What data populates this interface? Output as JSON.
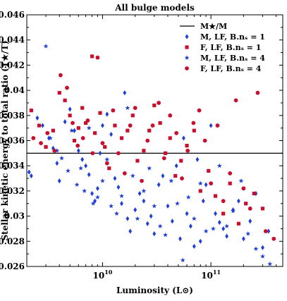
{
  "chart_data": {
    "type": "scatter",
    "title": "All bulge models",
    "xlabel": "Luminosity (L⊙)",
    "ylabel": "Stellar kinetic energy to total ratio (T★/T)",
    "xscale": "log",
    "xlim": [
      2000000000.0,
      460000000000.0
    ],
    "ylim": [
      0.026,
      0.046
    ],
    "yticks": [
      0.026,
      0.028,
      0.03,
      0.032,
      0.034,
      0.036,
      0.038,
      0.04,
      0.042,
      0.044,
      0.046
    ],
    "ytick_labels": [
      "0.026",
      "0.028",
      "0.03",
      "0.032",
      "0.034",
      "0.036",
      "0.038",
      "0.04",
      "0.042",
      "0.044",
      "0.046"
    ],
    "xticks": [
      10000000000.0,
      100000000000.0
    ],
    "xtick_labels": [
      {
        "base": "10",
        "exp": "10"
      },
      {
        "base": "10",
        "exp": "11"
      }
    ],
    "legend_position": "top-right",
    "reference_line": {
      "name": "M★/M",
      "y": 0.035,
      "color": "#000000"
    },
    "series": [
      {
        "name": "M, LF, B.nₛ = 1",
        "marker": "diamond",
        "color": "#1f3fd6",
        "points": [
          [
            2100000000.0,
            0.0335
          ],
          [
            2200000000.0,
            0.0332
          ],
          [
            2500000000.0,
            0.0378
          ],
          [
            2800000000.0,
            0.0372
          ],
          [
            3200000000.0,
            0.0362
          ],
          [
            3500000000.0,
            0.0354
          ],
          [
            3800000000.0,
            0.0342
          ],
          [
            4000000000.0,
            0.0328
          ],
          [
            4500000000.0,
            0.0375
          ],
          [
            5000000000.0,
            0.0385
          ],
          [
            5500000000.0,
            0.0368
          ],
          [
            6000000000.0,
            0.0352
          ],
          [
            6500000000.0,
            0.0345
          ],
          [
            7000000000.0,
            0.034
          ],
          [
            7500000000.0,
            0.0333
          ],
          [
            8000000000.0,
            0.0318
          ],
          [
            8500000000.0,
            0.0312
          ],
          [
            9000000000.0,
            0.0322
          ],
          [
            9500000000.0,
            0.035
          ],
          [
            10000000000.0,
            0.0372
          ],
          [
            11000000000.0,
            0.0381
          ],
          [
            12000000000.0,
            0.0365
          ],
          [
            13000000000.0,
            0.033
          ],
          [
            14000000000.0,
            0.0323
          ],
          [
            15000000000.0,
            0.031
          ],
          [
            16000000000.0,
            0.0398
          ],
          [
            17000000000.0,
            0.0298
          ],
          [
            18000000000.0,
            0.0288
          ],
          [
            20000000000.0,
            0.0305
          ],
          [
            22000000000.0,
            0.0318
          ],
          [
            24000000000.0,
            0.0312
          ],
          [
            26000000000.0,
            0.0294
          ],
          [
            28000000000.0,
            0.03
          ],
          [
            30000000000.0,
            0.0286
          ],
          [
            33000000000.0,
            0.0325
          ],
          [
            36000000000.0,
            0.0332
          ],
          [
            40000000000.0,
            0.0308
          ],
          [
            44000000000.0,
            0.0296
          ],
          [
            48000000000.0,
            0.034
          ],
          [
            52000000000.0,
            0.0282
          ],
          [
            56000000000.0,
            0.0362
          ],
          [
            60000000000.0,
            0.0302
          ],
          [
            65000000000.0,
            0.0292
          ],
          [
            70000000000.0,
            0.0276
          ],
          [
            75000000000.0,
            0.0345
          ],
          [
            80000000000.0,
            0.028
          ],
          [
            85000000000.0,
            0.0312
          ],
          [
            90000000000.0,
            0.0325
          ],
          [
            100000000000.0,
            0.0372
          ],
          [
            110000000000.0,
            0.0302
          ],
          [
            120000000000.0,
            0.0295
          ],
          [
            130000000000.0,
            0.029
          ],
          [
            140000000000.0,
            0.0284
          ],
          [
            160000000000.0,
            0.0305
          ],
          [
            180000000000.0,
            0.0312
          ],
          [
            200000000000.0,
            0.0282
          ],
          [
            230000000000.0,
            0.0296
          ],
          [
            260000000000.0,
            0.0318
          ],
          [
            300000000000.0,
            0.0275
          ],
          [
            340000000000.0,
            0.0288
          ]
        ]
      },
      {
        "name": "F, LF, B.nₛ = 1",
        "marker": "square",
        "color": "#c8102e",
        "points": [
          [
            2200000000.0,
            0.0384
          ],
          [
            2600000000.0,
            0.0372
          ],
          [
            3000000000.0,
            0.0355
          ],
          [
            3500000000.0,
            0.0368
          ],
          [
            4000000000.0,
            0.0398
          ],
          [
            4500000000.0,
            0.0392
          ],
          [
            5000000000.0,
            0.038
          ],
          [
            5500000000.0,
            0.036
          ],
          [
            6000000000.0,
            0.037
          ],
          [
            6500000000.0,
            0.0386
          ],
          [
            7000000000.0,
            0.0374
          ],
          [
            8000000000.0,
            0.0427
          ],
          [
            8500000000.0,
            0.0366
          ],
          [
            9500000000.0,
            0.0382
          ],
          [
            10500000000.0,
            0.0355
          ],
          [
            11500000000.0,
            0.0338
          ],
          [
            13000000000.0,
            0.0372
          ],
          [
            15000000000.0,
            0.0362
          ],
          [
            17000000000.0,
            0.0368
          ],
          [
            19000000000.0,
            0.038
          ],
          [
            21000000000.0,
            0.0344
          ],
          [
            24000000000.0,
            0.0352
          ],
          [
            27000000000.0,
            0.0368
          ],
          [
            30000000000.0,
            0.0388
          ],
          [
            34000000000.0,
            0.0374
          ],
          [
            38000000000.0,
            0.035
          ],
          [
            42000000000.0,
            0.0362
          ],
          [
            47000000000.0,
            0.0332
          ],
          [
            53000000000.0,
            0.0344
          ],
          [
            60000000000.0,
            0.0356
          ],
          [
            70000000000.0,
            0.0368
          ],
          [
            80000000000.0,
            0.032
          ],
          [
            95000000000.0,
            0.0336
          ],
          [
            110000000000.0,
            0.0316
          ],
          [
            130000000000.0,
            0.0302
          ],
          [
            150000000000.0,
            0.0326
          ],
          [
            180000000000.0,
            0.0294
          ],
          [
            210000000000.0,
            0.031
          ],
          [
            250000000000.0,
            0.0318
          ],
          [
            300000000000.0,
            0.0306
          ]
        ]
      },
      {
        "name": "M, LF, B.nₛ = 4",
        "marker": "star",
        "color": "#1f3fd6",
        "points": [
          [
            3000000000.0,
            0.0435
          ],
          [
            3300000000.0,
            0.0362
          ],
          [
            3800000000.0,
            0.0352
          ],
          [
            4200000000.0,
            0.0346
          ],
          [
            4800000000.0,
            0.0336
          ],
          [
            5200000000.0,
            0.0368
          ],
          [
            5800000000.0,
            0.0325
          ],
          [
            6300000000.0,
            0.0338
          ],
          [
            6800000000.0,
            0.032
          ],
          [
            7500000000.0,
            0.037
          ],
          [
            8200000000.0,
            0.031
          ],
          [
            9000000000.0,
            0.0315
          ],
          [
            10000000000.0,
            0.0328
          ],
          [
            11000000000.0,
            0.0345
          ],
          [
            12000000000.0,
            0.0308
          ],
          [
            13500000000.0,
            0.0302
          ],
          [
            15000000000.0,
            0.0316
          ],
          [
            17000000000.0,
            0.0386
          ],
          [
            19000000000.0,
            0.0332
          ],
          [
            21000000000.0,
            0.0298
          ],
          [
            24000000000.0,
            0.032
          ],
          [
            27000000000.0,
            0.0338
          ],
          [
            30000000000.0,
            0.0308
          ],
          [
            34000000000.0,
            0.0292
          ],
          [
            38000000000.0,
            0.0285
          ],
          [
            43000000000.0,
            0.0328
          ],
          [
            49000000000.0,
            0.031
          ],
          [
            55000000000.0,
            0.0265
          ],
          [
            62000000000.0,
            0.0315
          ],
          [
            70000000000.0,
            0.0298
          ],
          [
            80000000000.0,
            0.0326
          ],
          [
            90000000000.0,
            0.0288
          ],
          [
            105000000000.0,
            0.029
          ],
          [
            120000000000.0,
            0.034
          ],
          [
            140000000000.0,
            0.0292
          ],
          [
            160000000000.0,
            0.0304
          ],
          [
            190000000000.0,
            0.0328
          ],
          [
            220000000000.0,
            0.0286
          ],
          [
            260000000000.0,
            0.0274
          ],
          [
            300000000000.0,
            0.0268
          ],
          [
            350000000000.0,
            0.0262
          ]
        ]
      },
      {
        "name": "F, LF, B.nₛ = 4",
        "marker": "circle",
        "color": "#c8102e",
        "points": [
          [
            2300000000.0,
            0.0362
          ],
          [
            2700000000.0,
            0.0358
          ],
          [
            3100000000.0,
            0.0366
          ],
          [
            3600000000.0,
            0.0352
          ],
          [
            4100000000.0,
            0.0412
          ],
          [
            4700000000.0,
            0.0402
          ],
          [
            5300000000.0,
            0.0374
          ],
          [
            5900000000.0,
            0.0356
          ],
          [
            6600000000.0,
            0.0362
          ],
          [
            7300000000.0,
            0.0376
          ],
          [
            8100000000.0,
            0.035
          ],
          [
            9000000000.0,
            0.0426
          ],
          [
            10000000000.0,
            0.0358
          ],
          [
            11000000000.0,
            0.0342
          ],
          [
            12500000000.0,
            0.0384
          ],
          [
            14000000000.0,
            0.035
          ],
          [
            16000000000.0,
            0.0334
          ],
          [
            18000000000.0,
            0.0372
          ],
          [
            20000000000.0,
            0.0386
          ],
          [
            23000000000.0,
            0.0328
          ],
          [
            26000000000.0,
            0.036
          ],
          [
            29000000000.0,
            0.0372
          ],
          [
            33000000000.0,
            0.039
          ],
          [
            37000000000.0,
            0.0346
          ],
          [
            42000000000.0,
            0.038
          ],
          [
            48000000000.0,
            0.0366
          ],
          [
            54000000000.0,
            0.033
          ],
          [
            61000000000.0,
            0.0352
          ],
          [
            69000000000.0,
            0.0374
          ],
          [
            78000000000.0,
            0.0384
          ],
          [
            88000000000.0,
            0.036
          ],
          [
            100000000000.0,
            0.0326
          ],
          [
            115000000000.0,
            0.0372
          ],
          [
            130000000000.0,
            0.0312
          ],
          [
            150000000000.0,
            0.0334
          ],
          [
            170000000000.0,
            0.0392
          ],
          [
            200000000000.0,
            0.0322
          ],
          [
            230000000000.0,
            0.0306
          ],
          [
            270000000000.0,
            0.0398
          ],
          [
            320000000000.0,
            0.0288
          ],
          [
            380000000000.0,
            0.0282
          ]
        ]
      }
    ]
  }
}
